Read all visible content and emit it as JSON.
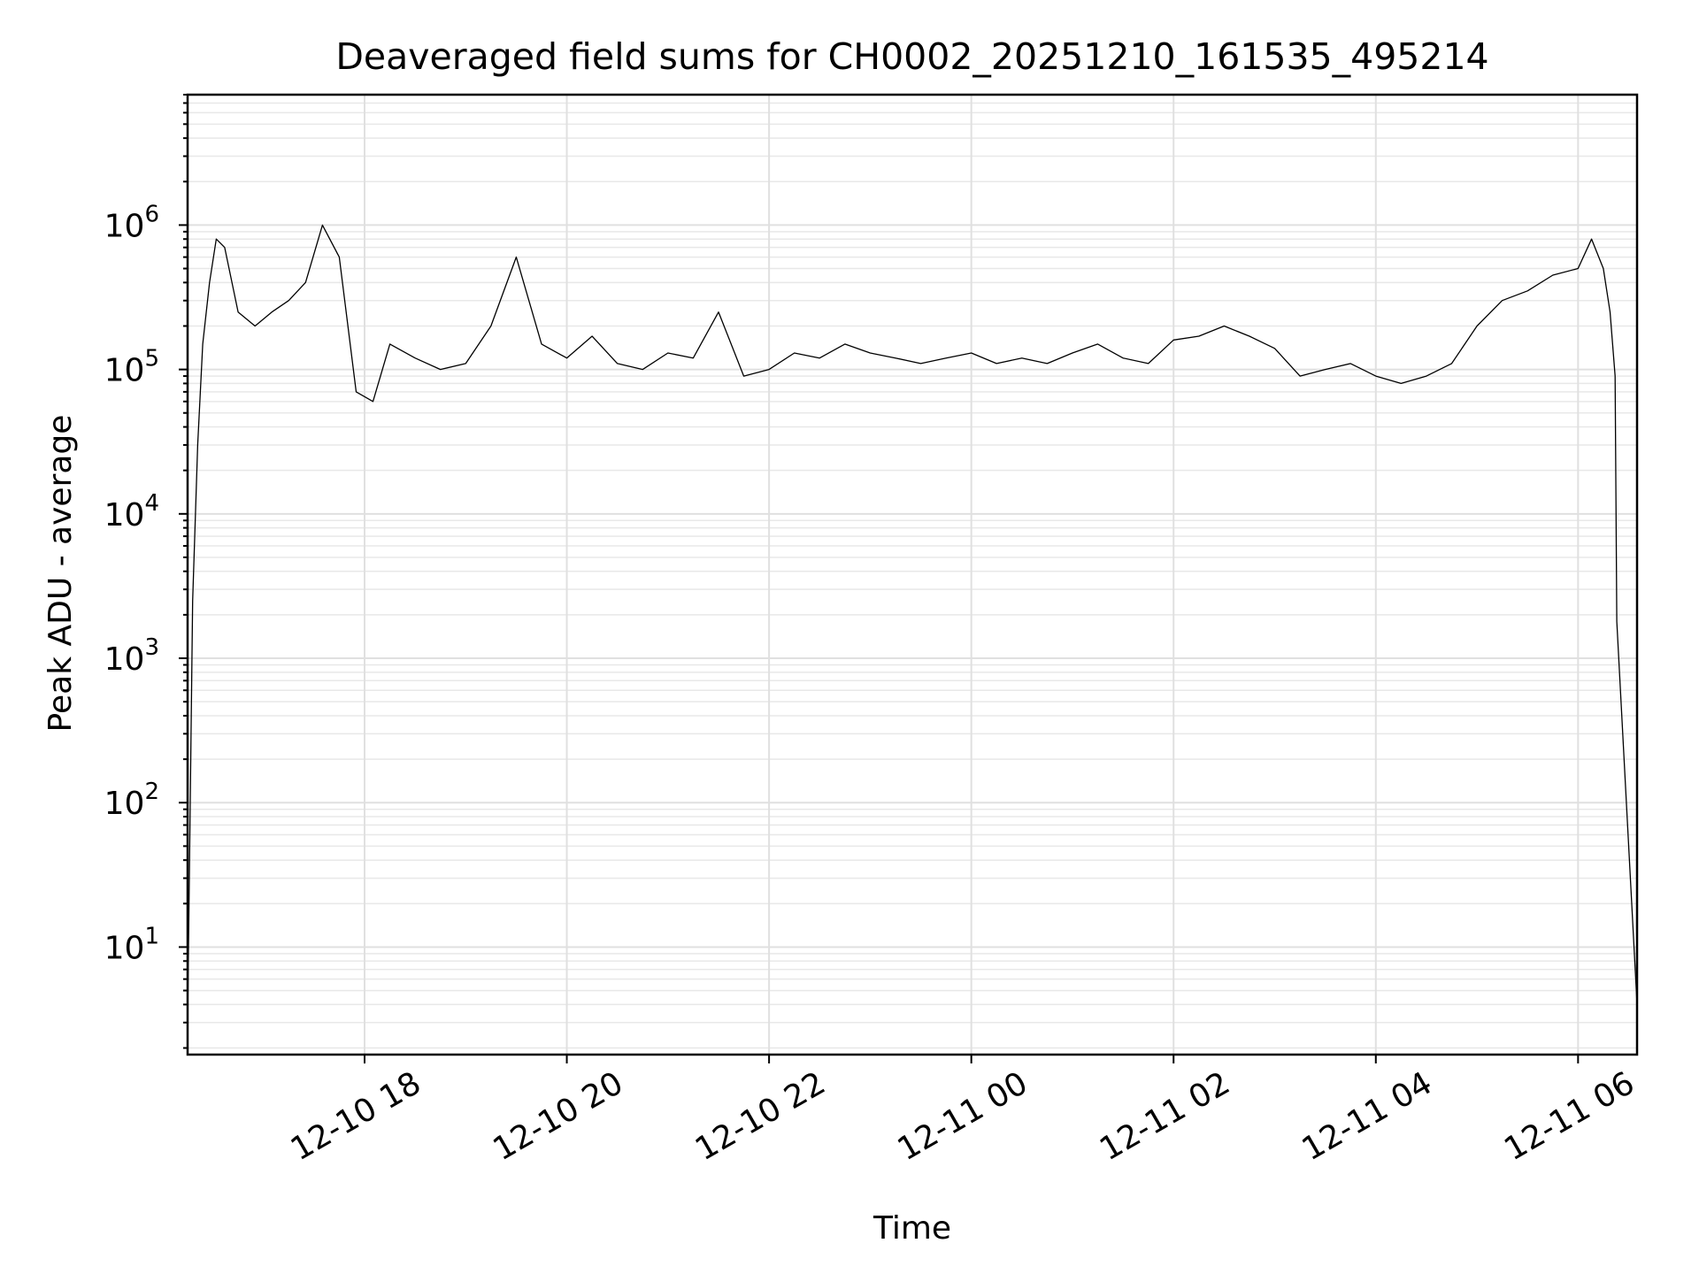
{
  "chart_data": {
    "type": "line",
    "title": "Deaveraged field sums for CH0002_20251210_161535_495214",
    "xlabel": "Time",
    "ylabel": "Peak ADU - average",
    "yscale": "log",
    "xlim": [
      "2025-12-10 16:15",
      "2025-12-11 06:35"
    ],
    "ylim": [
      1.8,
      8000000
    ],
    "grid": "on (major and minor)",
    "x_ticks": [
      "12-10 18",
      "12-10 20",
      "12-10 22",
      "12-11 00",
      "12-11 02",
      "12-11 04",
      "12-11 06"
    ],
    "y_ticks": [
      {
        "base": "10",
        "exp": "1"
      },
      {
        "base": "10",
        "exp": "2"
      },
      {
        "base": "10",
        "exp": "3"
      },
      {
        "base": "10",
        "exp": "4"
      },
      {
        "base": "10",
        "exp": "5"
      },
      {
        "base": "10",
        "exp": "6"
      }
    ],
    "series": [
      {
        "color": "#000000",
        "x": [
          "2025-12-10 16:15",
          "2025-12-10 16:18",
          "2025-12-10 16:21",
          "2025-12-10 16:24",
          "2025-12-10 16:28",
          "2025-12-10 16:32",
          "2025-12-10 16:37",
          "2025-12-10 16:45",
          "2025-12-10 16:55",
          "2025-12-10 17:05",
          "2025-12-10 17:15",
          "2025-12-10 17:25",
          "2025-12-10 17:35",
          "2025-12-10 17:45",
          "2025-12-10 17:55",
          "2025-12-10 18:05",
          "2025-12-10 18:15",
          "2025-12-10 18:30",
          "2025-12-10 18:45",
          "2025-12-10 19:00",
          "2025-12-10 19:15",
          "2025-12-10 19:30",
          "2025-12-10 19:45",
          "2025-12-10 20:00",
          "2025-12-10 20:15",
          "2025-12-10 20:30",
          "2025-12-10 20:45",
          "2025-12-10 21:00",
          "2025-12-10 21:15",
          "2025-12-10 21:30",
          "2025-12-10 21:45",
          "2025-12-10 22:00",
          "2025-12-10 22:15",
          "2025-12-10 22:30",
          "2025-12-10 22:45",
          "2025-12-10 23:00",
          "2025-12-10 23:15",
          "2025-12-10 23:30",
          "2025-12-10 23:45",
          "2025-12-11 00:00",
          "2025-12-11 00:15",
          "2025-12-11 00:30",
          "2025-12-11 00:45",
          "2025-12-11 01:00",
          "2025-12-11 01:15",
          "2025-12-11 01:30",
          "2025-12-11 01:45",
          "2025-12-11 02:00",
          "2025-12-11 02:15",
          "2025-12-11 02:30",
          "2025-12-11 02:45",
          "2025-12-11 03:00",
          "2025-12-11 03:15",
          "2025-12-11 03:30",
          "2025-12-11 03:45",
          "2025-12-11 04:00",
          "2025-12-11 04:15",
          "2025-12-11 04:30",
          "2025-12-11 04:45",
          "2025-12-11 05:00",
          "2025-12-11 05:15",
          "2025-12-11 05:30",
          "2025-12-11 05:45",
          "2025-12-11 06:00",
          "2025-12-11 06:08",
          "2025-12-11 06:15",
          "2025-12-11 06:19",
          "2025-12-11 06:22",
          "2025-12-11 06:23",
          "2025-12-11 06:35"
        ],
        "y": [
          3,
          2500,
          30000,
          150000,
          400000,
          800000,
          700000,
          250000,
          200000,
          250000,
          300000,
          400000,
          1000000,
          600000,
          70000,
          60000,
          150000,
          120000,
          100000,
          110000,
          200000,
          600000,
          150000,
          120000,
          170000,
          110000,
          100000,
          130000,
          120000,
          250000,
          90000,
          100000,
          130000,
          120000,
          150000,
          130000,
          120000,
          110000,
          120000,
          130000,
          110000,
          120000,
          110000,
          130000,
          150000,
          120000,
          110000,
          160000,
          170000,
          200000,
          170000,
          140000,
          90000,
          100000,
          110000,
          90000,
          80000,
          90000,
          110000,
          200000,
          300000,
          350000,
          450000,
          500000,
          800000,
          500000,
          250000,
          90000,
          1800,
          4
        ]
      }
    ]
  }
}
